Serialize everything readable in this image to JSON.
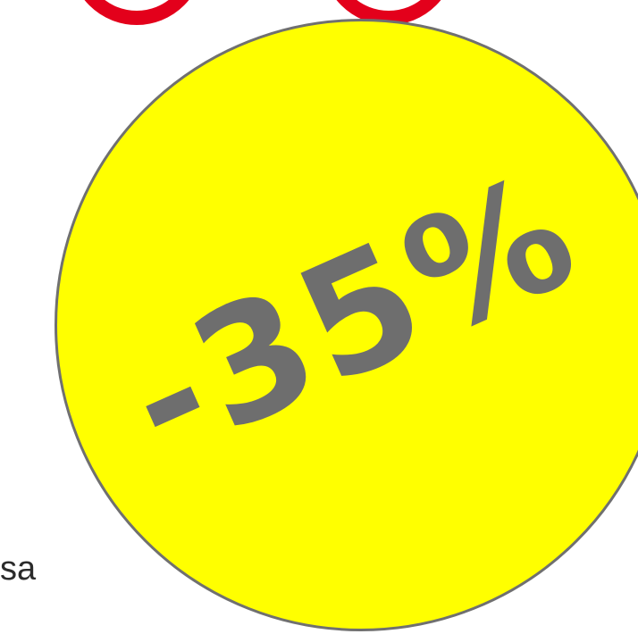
{
  "badge": {
    "discount_label": "-35%",
    "fill_color": "#ffff00",
    "border_color": "#707070",
    "text_color": "#6e6e6e"
  },
  "decorations": {
    "ring_color": "#e3001b"
  },
  "side_text": "sa"
}
